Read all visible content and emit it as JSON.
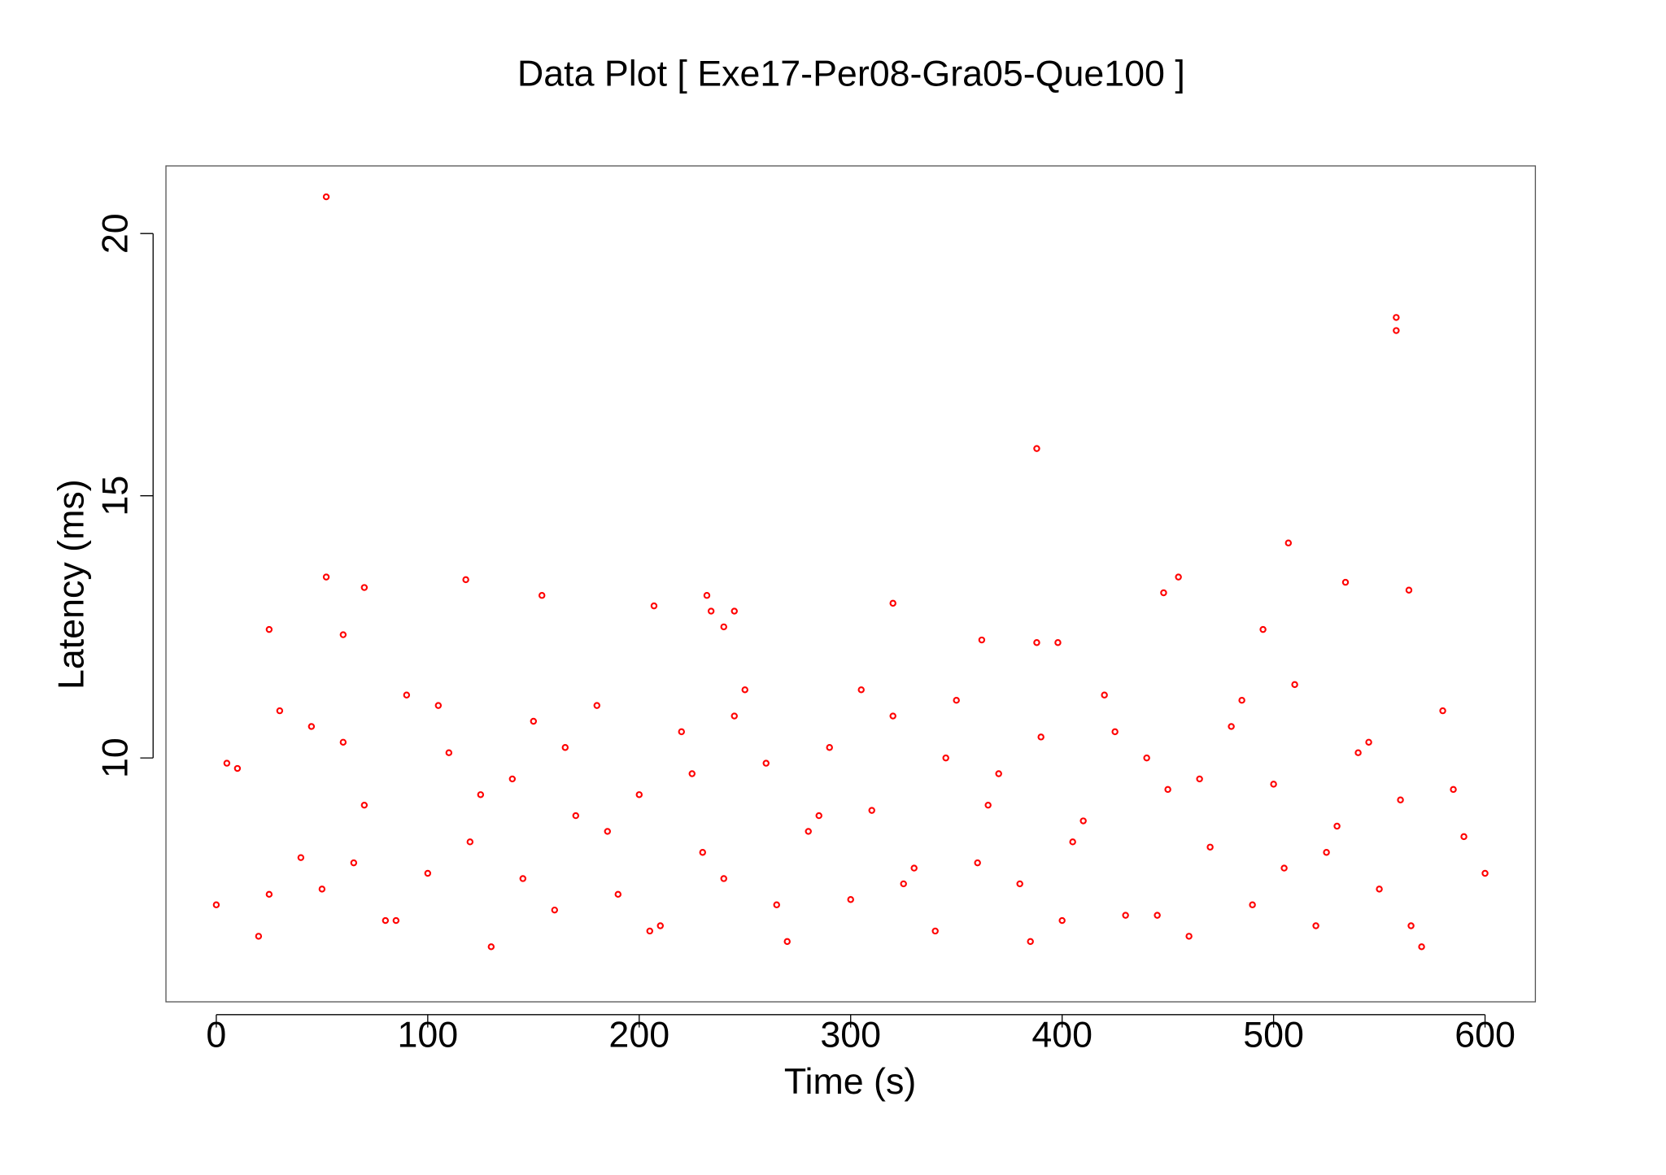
{
  "chart_data": {
    "type": "scatter",
    "title": "Data Plot [ Exe17-Per08-Gra05-Que100 ]",
    "x_label": "Time (s)",
    "y_label": "Latency (ms)",
    "color": "#ff0000",
    "xlim": [
      -23.8,
      623.8
    ],
    "ylim": [
      5.35,
      21.29
    ],
    "xticks": [
      0,
      100,
      200,
      300,
      400,
      500,
      600
    ],
    "yticks": [
      10,
      15,
      20
    ],
    "x": [
      0,
      10,
      20,
      30,
      40,
      50,
      60,
      70,
      80,
      90,
      100,
      110,
      120,
      130,
      140,
      150,
      160,
      170,
      180,
      190,
      200,
      210,
      220,
      230,
      240,
      250,
      260,
      270,
      280,
      290,
      300,
      310,
      320,
      330,
      340,
      350,
      360,
      370,
      380,
      390,
      400,
      410,
      420,
      430,
      440,
      450,
      460,
      470,
      480,
      490,
      500,
      510,
      520,
      530,
      540,
      550,
      560,
      570,
      580,
      590,
      600,
      5,
      25,
      45,
      65,
      85,
      105,
      125,
      145,
      165,
      185,
      205,
      225,
      245,
      265,
      285,
      305,
      325,
      345,
      365,
      385,
      405,
      425,
      445,
      465,
      485,
      505,
      525,
      545,
      565,
      585,
      52,
      52,
      70,
      118,
      154,
      232,
      234,
      240,
      245,
      207,
      320,
      388,
      448,
      455,
      507,
      534,
      558,
      558,
      564,
      495,
      362,
      25,
      60,
      388,
      398
    ],
    "y": [
      7.2,
      9.8,
      6.6,
      10.9,
      8.1,
      7.5,
      10.3,
      9.1,
      6.9,
      11.2,
      7.8,
      10.1,
      8.4,
      6.4,
      9.6,
      10.7,
      7.1,
      8.9,
      11.0,
      7.4,
      9.3,
      6.8,
      10.5,
      8.2,
      7.7,
      11.3,
      9.9,
      6.5,
      8.6,
      10.2,
      7.3,
      9.0,
      10.8,
      7.9,
      6.7,
      11.1,
      8.0,
      9.7,
      7.6,
      10.4,
      6.9,
      8.8,
      11.2,
      7.0,
      10.0,
      9.4,
      6.6,
      8.3,
      10.6,
      7.2,
      9.5,
      11.4,
      6.8,
      8.7,
      10.1,
      7.5,
      9.2,
      6.4,
      10.9,
      8.5,
      7.8,
      9.9,
      7.4,
      10.6,
      8.0,
      6.9,
      11.0,
      9.3,
      7.7,
      10.2,
      8.6,
      6.7,
      9.7,
      10.8,
      7.2,
      8.9,
      11.3,
      7.6,
      10.0,
      9.1,
      6.5,
      8.4,
      10.5,
      7.0,
      9.6,
      11.1,
      7.9,
      8.2,
      10.3,
      6.8,
      9.4,
      20.7,
      13.45,
      13.25,
      13.4,
      13.1,
      13.1,
      12.8,
      12.5,
      12.8,
      12.9,
      12.95,
      15.9,
      13.15,
      13.45,
      14.1,
      13.35,
      18.4,
      18.15,
      13.2,
      12.45,
      12.25,
      12.45,
      12.35,
      12.2,
      12.2
    ]
  }
}
